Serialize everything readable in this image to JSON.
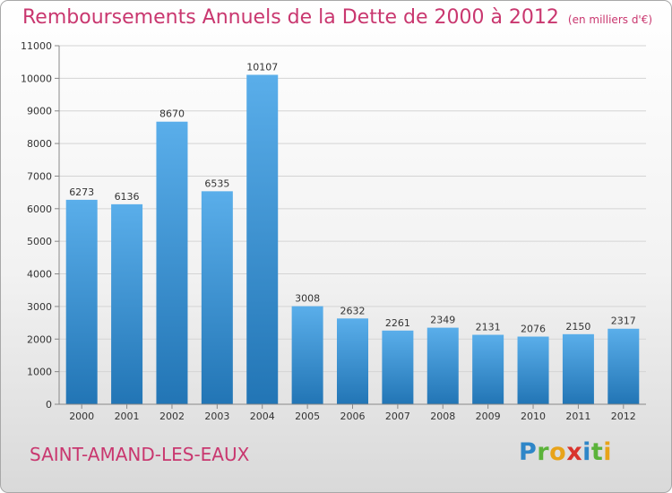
{
  "chart_data": {
    "type": "bar",
    "title": "Remboursements Annuels de la Dette de 2000 à 2012",
    "subtitle": "(en milliers d'€)",
    "categories": [
      "2000",
      "2001",
      "2002",
      "2003",
      "2004",
      "2005",
      "2006",
      "2007",
      "2008",
      "2009",
      "2010",
      "2011",
      "2012"
    ],
    "values": [
      6273,
      6136,
      8670,
      6535,
      10107,
      3008,
      2632,
      2261,
      2349,
      2131,
      2076,
      2150,
      2317
    ],
    "ylim": [
      0,
      11000
    ],
    "yticks": [
      0,
      1000,
      2000,
      3000,
      4000,
      5000,
      6000,
      7000,
      8000,
      9000,
      10000,
      11000
    ],
    "grid": true,
    "bar_color": "#3a92d6"
  },
  "footer": {
    "city": "SAINT-AMAND-LES-EAUX",
    "logo_letters": [
      {
        "ch": "P",
        "color": "#2e86c8"
      },
      {
        "ch": "r",
        "color": "#5bb33a"
      },
      {
        "ch": "o",
        "color": "#e8a319"
      },
      {
        "ch": "x",
        "color": "#d9332c"
      },
      {
        "ch": "i",
        "color": "#2e86c8"
      },
      {
        "ch": "t",
        "color": "#5bb33a"
      },
      {
        "ch": "i",
        "color": "#e8a319"
      }
    ]
  }
}
